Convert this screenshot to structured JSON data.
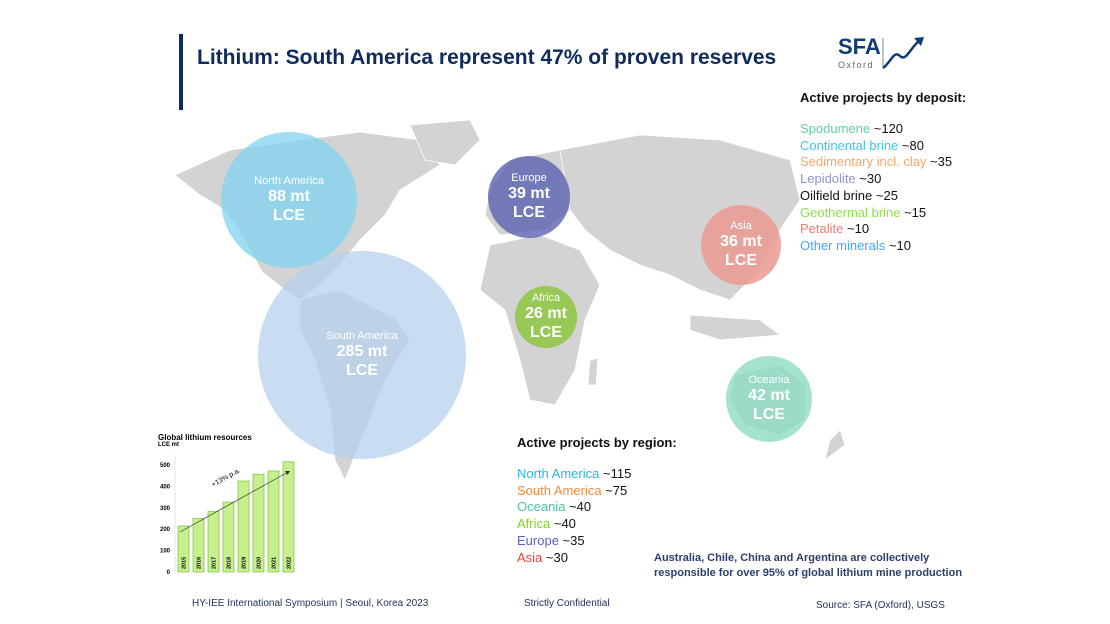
{
  "title": "Lithium: South America represent 47% of proven reserves",
  "logo": {
    "text": "SFA",
    "sub": "Oxford"
  },
  "bubbles": [
    {
      "name": "North America",
      "value": "88 mt",
      "unit": "LCE",
      "color": "#7fd3f0"
    },
    {
      "name": "Europe",
      "value": "39 mt",
      "unit": "LCE",
      "color": "#5b61b0"
    },
    {
      "name": "Asia",
      "value": "36 mt",
      "unit": "LCE",
      "color": "#ea9a90"
    },
    {
      "name": "Africa",
      "value": "26 mt",
      "unit": "LCE",
      "color": "#8dc63f"
    },
    {
      "name": "South America",
      "value": "285 mt",
      "unit": "LCE",
      "color": "#b6d2ee"
    },
    {
      "name": "Oceania",
      "value": "42 mt",
      "unit": "LCE",
      "color": "#8fdcc6"
    }
  ],
  "deposit": {
    "title": "Active projects by deposit:",
    "items": [
      {
        "label": "Spodumene",
        "value": "~120",
        "color": "#5fd0a8"
      },
      {
        "label": "Continental brine",
        "value": "~80",
        "color": "#41c4ef"
      },
      {
        "label": "Sedimentary incl. clay",
        "value": "~35",
        "color": "#f9a66c"
      },
      {
        "label": "Lepidolite",
        "value": "~30",
        "color": "#8c95d8"
      },
      {
        "label": "Oilfield brine",
        "value": "~25",
        "color": "#111111"
      },
      {
        "label": "Geothermal brine",
        "value": "~15",
        "color": "#8fe04a"
      },
      {
        "label": "Petalite",
        "value": "~10",
        "color": "#f07b6f"
      },
      {
        "label": "Other minerals",
        "value": "~10",
        "color": "#3fa9ef"
      }
    ]
  },
  "region": {
    "title": "Active projects by region:",
    "items": [
      {
        "label": "North America",
        "value": "~115",
        "color": "#29b6ea"
      },
      {
        "label": "South America",
        "value": "~75",
        "color": "#f98a34"
      },
      {
        "label": "Oceania",
        "value": "~40",
        "color": "#45c9a2"
      },
      {
        "label": "Africa",
        "value": "~40",
        "color": "#7ed321"
      },
      {
        "label": "Europe",
        "value": "~35",
        "color": "#5563c9"
      },
      {
        "label": "Asia",
        "value": "~30",
        "color": "#f2413a"
      }
    ]
  },
  "note": [
    "Australia, Chile, China and Argentina are collectively",
    "responsible for over 95% of global lithium mine production"
  ],
  "footer": {
    "left": "HY-IEE International Symposium | Seoul, Korea 2023",
    "center": "Strictly Confidential",
    "right": "Source: SFA (Oxford), USGS"
  },
  "chart_data": {
    "type": "bar",
    "title": "Global lithium resources",
    "ylabel": "LCE mt",
    "categories": [
      "2015",
      "2016",
      "2017",
      "2018",
      "2019",
      "2020",
      "2021",
      "2022"
    ],
    "values": [
      215,
      250,
      282,
      327,
      425,
      457,
      472,
      515
    ],
    "yticks": [
      "0",
      "100",
      "200",
      "300",
      "400",
      "500"
    ],
    "ylim": [
      0,
      550
    ],
    "annotation": "+13% p.a.",
    "bar_color": "#c6ef8e"
  }
}
